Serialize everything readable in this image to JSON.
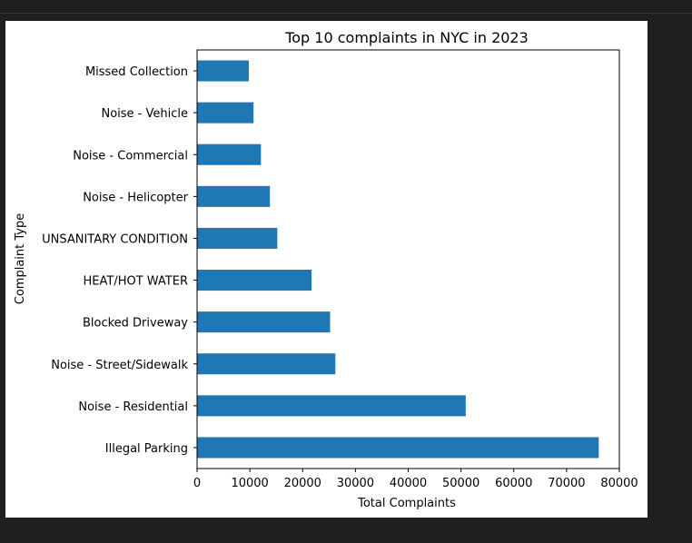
{
  "chart_data": {
    "type": "bar",
    "orientation": "horizontal",
    "title": "Top 10 complaints in NYC in 2023",
    "xlabel": "Total Complaints",
    "ylabel": "Complaint Type",
    "xlim": [
      0,
      80000
    ],
    "x_ticks": [
      0,
      10000,
      20000,
      30000,
      40000,
      50000,
      60000,
      70000,
      80000
    ],
    "x_tick_labels": [
      "0",
      "10000",
      "20000",
      "30000",
      "40000",
      "50000",
      "60000",
      "70000",
      "80000"
    ],
    "categories": [
      "Illegal Parking",
      "Noise - Residential",
      "Noise - Street/Sidewalk",
      "Blocked Driveway",
      "HEAT/HOT WATER",
      "UNSANITARY CONDITION",
      "Noise - Helicopter",
      "Noise - Commercial",
      "Noise - Vehicle",
      "Missed Collection"
    ],
    "values": [
      76100,
      50900,
      26200,
      25200,
      21700,
      15200,
      13800,
      12100,
      10700,
      9800
    ],
    "bar_color": "#1f77b4",
    "grid": false,
    "legend": "none"
  }
}
